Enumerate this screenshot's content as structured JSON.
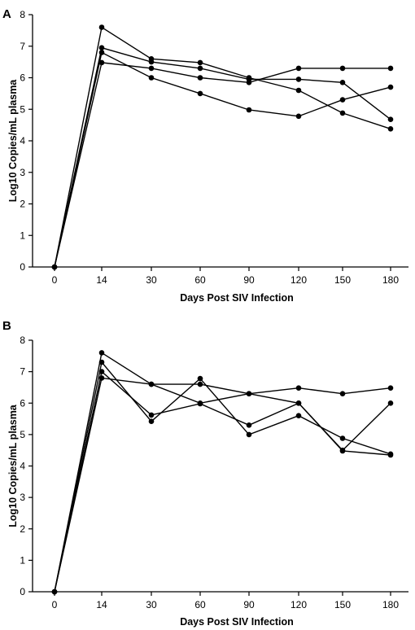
{
  "chart_data": [
    {
      "type": "line",
      "panel_label": "A",
      "categories": [
        "0",
        "14",
        "30",
        "60",
        "90",
        "120",
        "150",
        "180"
      ],
      "xlabel": "Days Post SIV Infection",
      "ylabel": "Log10 Copies/mL plasma",
      "ylim": [
        0,
        8
      ],
      "yticks": [
        "0",
        "1",
        "2",
        "3",
        "4",
        "5",
        "6",
        "7",
        "8"
      ],
      "grid": false,
      "series": [
        {
          "values": [
            0,
            7.6,
            6.6,
            6.48,
            6.0,
            5.6,
            4.88,
            4.38
          ]
        },
        {
          "values": [
            0,
            6.95,
            6.5,
            6.3,
            5.95,
            5.95,
            5.85,
            4.68
          ]
        },
        {
          "values": [
            0,
            6.8,
            6.0,
            5.5,
            4.98,
            4.78,
            5.3,
            5.7
          ]
        },
        {
          "values": [
            0,
            6.48,
            6.3,
            6.0,
            5.85,
            6.3,
            6.3,
            6.3
          ]
        }
      ]
    },
    {
      "type": "line",
      "panel_label": "B",
      "categories": [
        "0",
        "14",
        "30",
        "60",
        "90",
        "120",
        "150",
        "180"
      ],
      "xlabel": "Days Post SIV Infection",
      "ylabel": "Log10 Copies/mL plasma",
      "ylim": [
        0,
        8
      ],
      "yticks": [
        "0",
        "1",
        "2",
        "3",
        "4",
        "5",
        "6",
        "7",
        "8"
      ],
      "grid": false,
      "series": [
        {
          "values": [
            0,
            7.6,
            6.6,
            6.6,
            6.3,
            6.0,
            4.5,
            6.0
          ]
        },
        {
          "values": [
            0,
            7.3,
            5.42,
            6.78,
            5.0,
            5.6,
            4.88,
            4.38
          ]
        },
        {
          "values": [
            0,
            7.0,
            5.62,
            5.98,
            5.3,
            6.0,
            4.48,
            4.35
          ]
        },
        {
          "values": [
            0,
            6.8,
            6.6,
            6.0,
            6.3,
            6.48,
            6.3,
            6.48
          ]
        }
      ]
    }
  ]
}
